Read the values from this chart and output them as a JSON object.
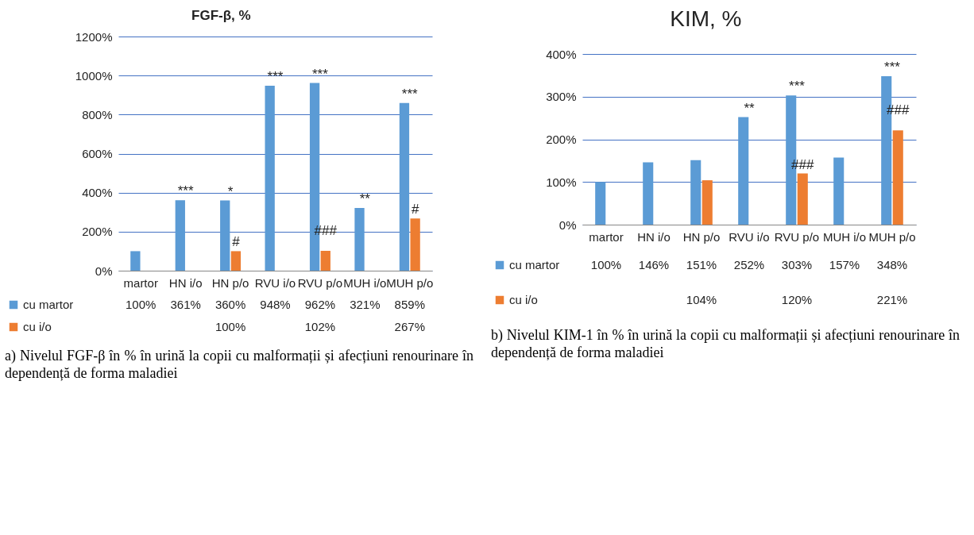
{
  "chart_data": [
    {
      "type": "bar",
      "title": "FGF-β, %",
      "categories": [
        "martor",
        "HN i/o",
        "HN p/o",
        "RVU i/o",
        "RVU p/o",
        "MUH i/o",
        "MUH p/o"
      ],
      "series": [
        {
          "name": "cu martor",
          "color": "#5b9bd5",
          "values": [
            100,
            361,
            360,
            948,
            962,
            321,
            859
          ],
          "value_labels": [
            "100%",
            "361%",
            "360%",
            "948%",
            "962%",
            "321%",
            "859%"
          ]
        },
        {
          "name": "cu i/o",
          "color": "#ed7d31",
          "values": [
            null,
            null,
            100,
            null,
            102,
            null,
            267
          ],
          "value_labels": [
            null,
            null,
            "100%",
            null,
            "102%",
            null,
            "267%"
          ]
        }
      ],
      "ylim": [
        0,
        1200
      ],
      "yticks": [
        {
          "value": 0,
          "label": "0%"
        },
        {
          "value": 200,
          "label": "200%"
        },
        {
          "value": 400,
          "label": "400%"
        },
        {
          "value": 600,
          "label": "600%"
        },
        {
          "value": 800,
          "label": "800%"
        },
        {
          "value": 1000,
          "label": "1000%"
        },
        {
          "value": 1200,
          "label": "1200%"
        }
      ],
      "grid": "y",
      "legend": "bottom",
      "data_labels": true,
      "annotations": [
        {
          "text": "***",
          "x": "HN i/o",
          "y": 361
        },
        {
          "text": "*",
          "x": "HN p/o",
          "y": 360
        },
        {
          "text": "#",
          "x": "HN p/o",
          "y": 100
        },
        {
          "text": "***",
          "x": "RVU i/o",
          "y": 948
        },
        {
          "text": "***",
          "x": "RVU p/o",
          "y": 962
        },
        {
          "text": "###",
          "x": "RVU p/o",
          "y": 102
        },
        {
          "text": "**",
          "x": "MUH i/o",
          "y": 321
        },
        {
          "text": "***",
          "x": "MUH p/o",
          "y": 859
        },
        {
          "text": "#",
          "x": "MUH p/o",
          "y": 267
        },
        "a) Nivelul FGF-β în % în urină la copii cu malformații și afecțiuni renourinare în dependență de forma maladiei"
      ]
    },
    {
      "type": "bar",
      "title": "KIM, %",
      "categories": [
        "martor",
        "HN i/o",
        "HN p/o",
        "RVU i/o",
        "RVU p/o",
        "MUH i/o",
        "MUH p/o"
      ],
      "series": [
        {
          "name": "cu martor",
          "color": "#5b9bd5",
          "values": [
            100,
            146,
            151,
            252,
            303,
            157,
            348
          ],
          "value_labels": [
            "100%",
            "146%",
            "151%",
            "252%",
            "303%",
            "157%",
            "348%"
          ]
        },
        {
          "name": "cu i/o",
          "color": "#ed7d31",
          "values": [
            null,
            null,
            104,
            null,
            120,
            null,
            221
          ],
          "value_labels": [
            null,
            null,
            "104%",
            null,
            "120%",
            null,
            "221%"
          ]
        }
      ],
      "ylim": [
        0,
        400
      ],
      "yticks": [
        {
          "value": 0,
          "label": "0%"
        },
        {
          "value": 100,
          "label": "100%"
        },
        {
          "value": 200,
          "label": "200%"
        },
        {
          "value": 300,
          "label": "300%"
        },
        {
          "value": 400,
          "label": "400%"
        }
      ],
      "grid": "y",
      "legend": "bottom",
      "data_labels": true,
      "annotations": [
        {
          "text": "**",
          "x": "RVU i/o",
          "y": 252
        },
        {
          "text": "***",
          "x": "RVU p/o",
          "y": 303
        },
        {
          "text": "###",
          "x": "RVU p/o",
          "y": 120
        },
        {
          "text": "***",
          "x": "MUH p/o",
          "y": 348
        },
        {
          "text": "###",
          "x": "MUH p/o",
          "y": 221
        },
        "b) Nivelul KIM-1 în % în urină la copii cu malformații și afecțiuni renourinare în dependență de forma maladiei"
      ]
    }
  ]
}
